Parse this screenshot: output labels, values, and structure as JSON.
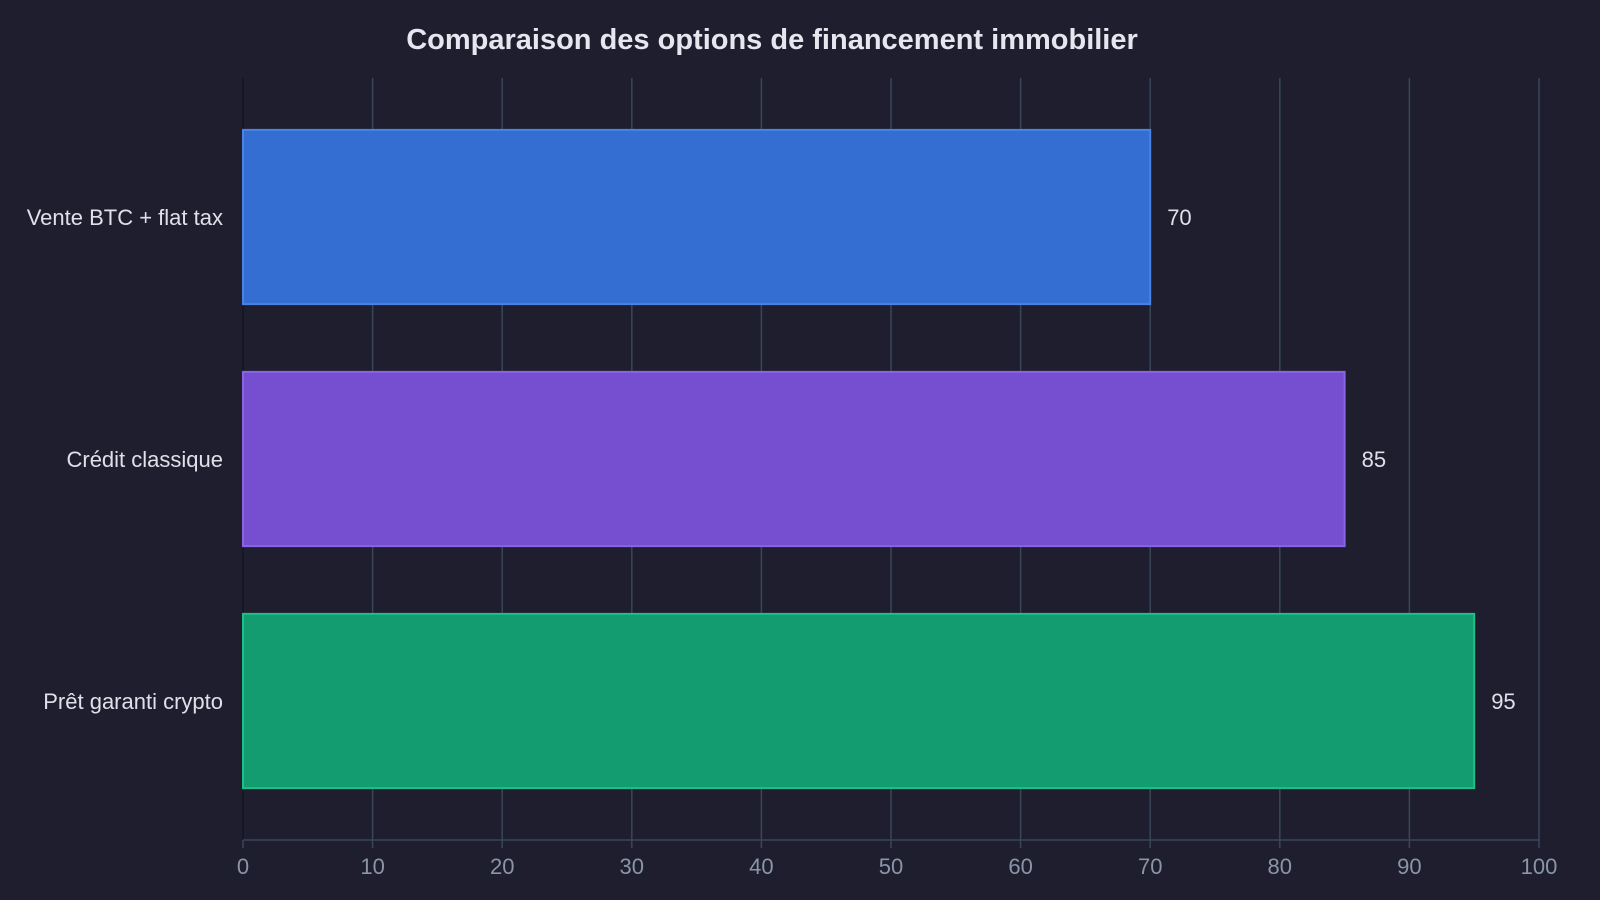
{
  "chart_data": {
    "type": "bar",
    "orientation": "horizontal",
    "title": "Comparaison des options de financement immobilier",
    "xlabel": "",
    "ylabel": "",
    "categories": [
      "Vente BTC + flat tax",
      "Crédit classique",
      "Prêt garanti crypto"
    ],
    "values": [
      70,
      85,
      95
    ],
    "value_labels": [
      "70",
      "85",
      "95"
    ],
    "colors": [
      "#346ed2",
      "#754fcf",
      "#129c70"
    ],
    "edge_colors": [
      "#4a82e6",
      "#8a63e6",
      "#1fbf88"
    ],
    "xlim": [
      0,
      100
    ],
    "xticks": [
      0,
      10,
      20,
      30,
      40,
      50,
      60,
      70,
      80,
      90,
      100
    ],
    "xtick_labels": [
      "0",
      "10",
      "20",
      "30",
      "40",
      "50",
      "60",
      "70",
      "80",
      "90",
      "100"
    ],
    "grid": true,
    "legend": "none",
    "background": "#1e1e2e",
    "grid_color": "#3a4658"
  }
}
